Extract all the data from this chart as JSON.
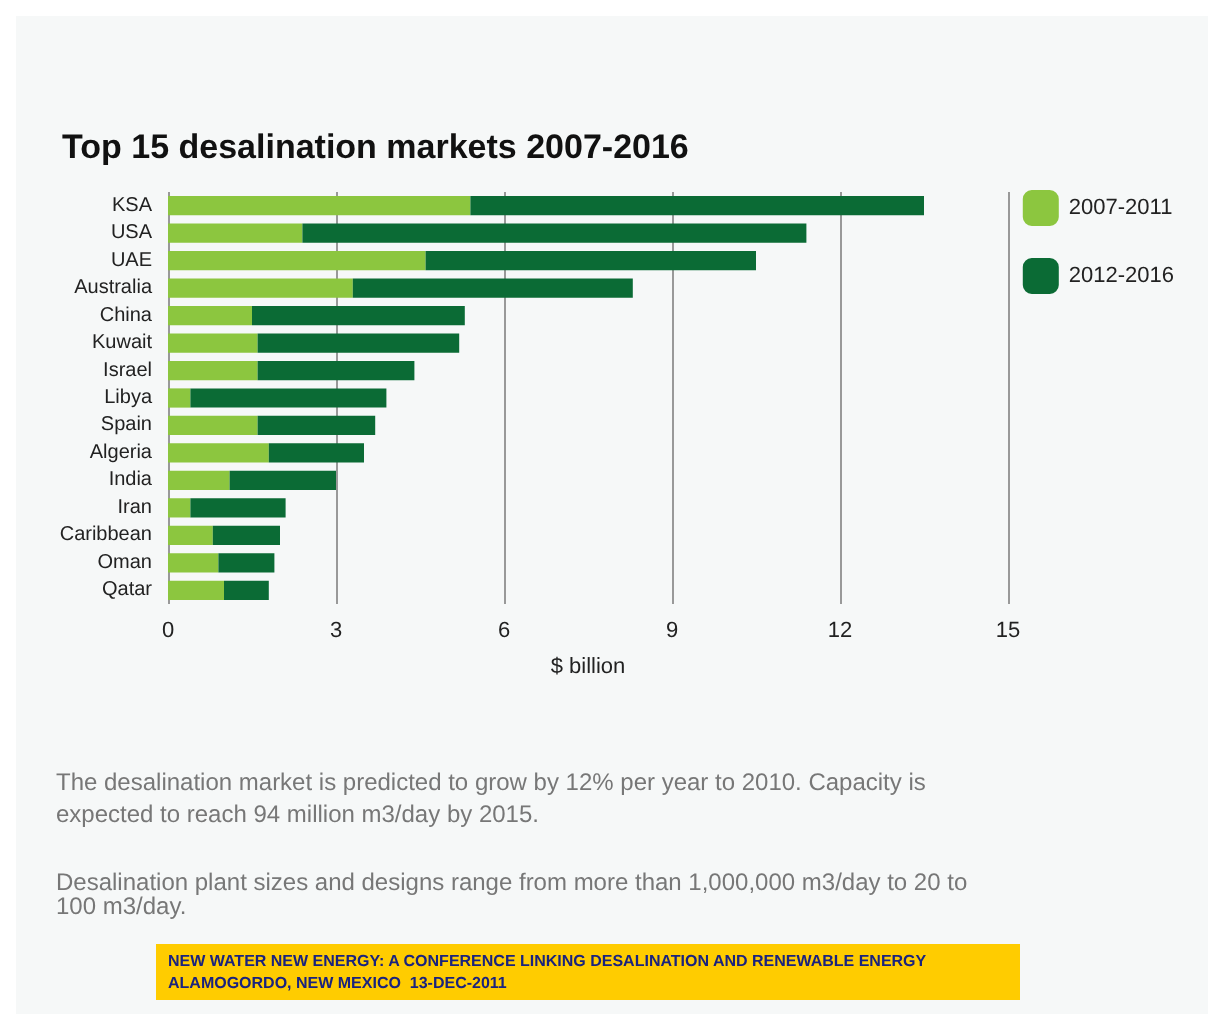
{
  "chart_data": {
    "type": "bar",
    "orientation": "horizontal",
    "stacked": true,
    "title": "Top 15 desalination markets 2007-2016",
    "xlabel": "$ billion",
    "categories": [
      "KSA",
      "USA",
      "UAE",
      "Australia",
      "China",
      "Kuwait",
      "Israel",
      "Libya",
      "Spain",
      "Algeria",
      "India",
      "Iran",
      "Caribbean",
      "Oman",
      "Qatar"
    ],
    "series": [
      {
        "name": "2007-2011",
        "color": "#8cc63f",
        "values": [
          5.4,
          2.4,
          4.6,
          3.3,
          1.5,
          1.6,
          1.6,
          0.4,
          1.6,
          1.8,
          1.1,
          0.4,
          0.8,
          0.9,
          1.0
        ]
      },
      {
        "name": "2012-2016",
        "color": "#0b6b35",
        "values": [
          8.1,
          9.0,
          5.9,
          5.0,
          3.8,
          3.6,
          2.8,
          3.5,
          2.1,
          1.7,
          1.9,
          1.7,
          1.2,
          1.0,
          0.8
        ]
      }
    ],
    "xlim": [
      0,
      15
    ],
    "xticks": [
      0,
      3,
      6,
      9,
      12,
      15
    ],
    "grid": "x",
    "legend": "top right",
    "annotations": [
      "The desalination market is predicted to grow by 12% per year to 2010. Capacity is expected to reach 94 million m3/day by 2015.",
      "Desalination plant sizes and designs range from more than 1,000,000 m3/day to 20 to 100 m3/day.",
      "NEW WATER NEW ENERGY: A CONFERENCE LINKING DESALINATION AND RENEWABLE ENERGY      ALAMOGORDO, NEW MEXICO  13-DEC-2011"
    ]
  }
}
